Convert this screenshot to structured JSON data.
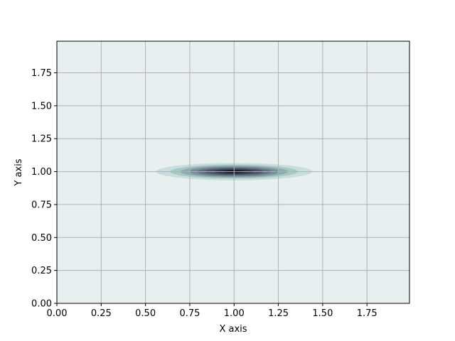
{
  "chart_data": {
    "type": "contour",
    "title": "",
    "xlabel": "X axis",
    "ylabel": "Y axis",
    "xlim": [
      0,
      1.99
    ],
    "ylim": [
      0,
      1.99
    ],
    "xticks": [
      0.0,
      0.25,
      0.5,
      0.75,
      1.0,
      1.25,
      1.5,
      1.75
    ],
    "yticks": [
      0.0,
      0.25,
      0.5,
      0.75,
      1.0,
      1.25,
      1.5,
      1.75
    ],
    "xtick_labels": [
      "0.00",
      "0.25",
      "0.50",
      "0.75",
      "1.00",
      "1.25",
      "1.50",
      "1.75"
    ],
    "ytick_labels": [
      "0.00",
      "0.25",
      "0.50",
      "0.75",
      "1.00",
      "1.25",
      "1.50",
      "1.75"
    ],
    "grid": true,
    "colormap": "bone_r",
    "field": {
      "shape": "gaussian",
      "center": [
        1.0,
        1.0
      ],
      "sigma_x": 0.2,
      "sigma_y": 0.03
    },
    "levels": [
      {
        "level": 0.0,
        "color": "#e8f0ef"
      },
      {
        "level": 0.125,
        "color": "#c8dedb"
      },
      {
        "level": 0.25,
        "color": "#a7c9c5"
      },
      {
        "level": 0.375,
        "color": "#8ca9ab"
      },
      {
        "level": 0.5,
        "color": "#768c95"
      },
      {
        "level": 0.625,
        "color": "#5f6e7f"
      },
      {
        "level": 0.75,
        "color": "#474f63"
      },
      {
        "level": 0.875,
        "color": "#2c2f42"
      },
      {
        "level": 1.0,
        "color": "#0f0f1a"
      }
    ],
    "colors": {
      "background": "#e8f0ef",
      "grid": "#b0b0b0",
      "spine": "#000000"
    }
  }
}
